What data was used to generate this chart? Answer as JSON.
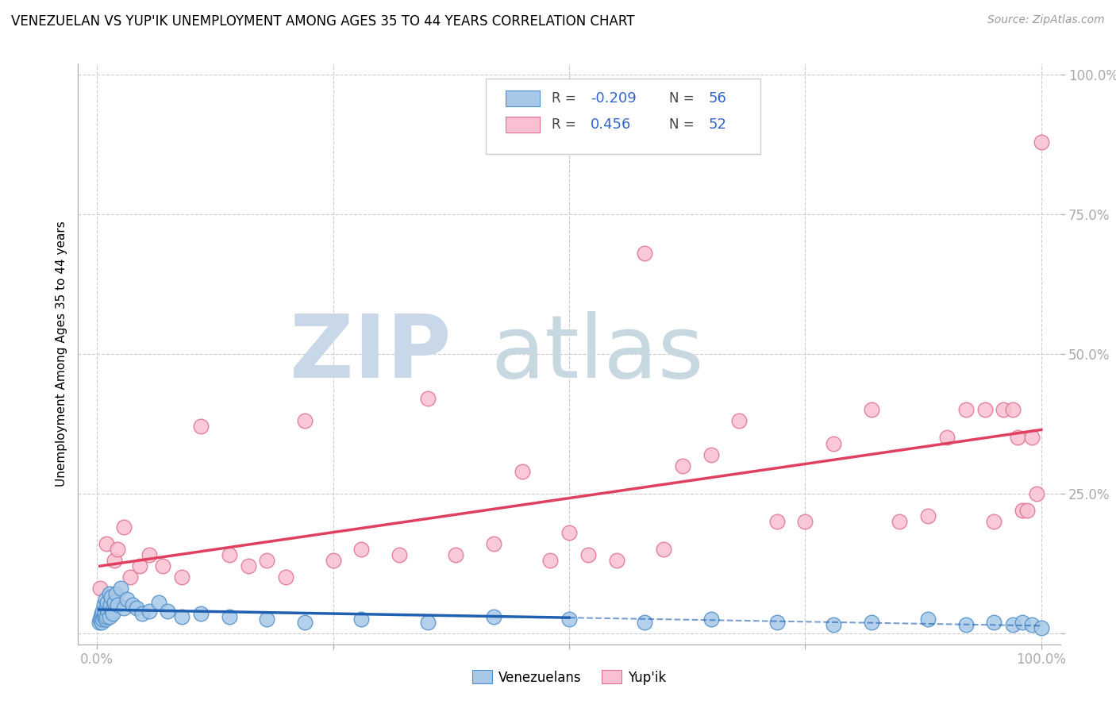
{
  "title": "VENEZUELAN VS YUP'IK UNEMPLOYMENT AMONG AGES 35 TO 44 YEARS CORRELATION CHART",
  "source": "Source: ZipAtlas.com",
  "ylabel": "Unemployment Among Ages 35 to 44 years",
  "xlim": [
    -0.02,
    1.02
  ],
  "ylim": [
    -0.02,
    1.02
  ],
  "xticks": [
    0.0,
    0.25,
    0.5,
    0.75,
    1.0
  ],
  "yticks": [
    0.0,
    0.25,
    0.5,
    0.75,
    1.0
  ],
  "xticklabels_bottom": [
    "0.0%",
    "",
    "",
    "",
    "100.0%"
  ],
  "yticklabels_right": [
    "",
    "25.0%",
    "50.0%",
    "75.0%",
    "100.0%"
  ],
  "venezuelan_R": -0.209,
  "venezuelan_N": 56,
  "yupik_R": 0.456,
  "yupik_N": 52,
  "venezuelan_color": "#a8c8e8",
  "venezuelan_edge_color": "#5090c8",
  "yupik_color": "#f8c0d0",
  "yupik_edge_color": "#e07090",
  "venezuelan_line_color": "#2060b0",
  "yupik_line_color": "#e04060",
  "watermark_zip_color": "#c8d8e8",
  "watermark_atlas_color": "#c8d8e0",
  "background_color": "#ffffff",
  "grid_color": "#cccccc",
  "venezuelan_x": [
    0.002,
    0.003,
    0.004,
    0.005,
    0.005,
    0.006,
    0.006,
    0.007,
    0.007,
    0.008,
    0.008,
    0.009,
    0.009,
    0.01,
    0.01,
    0.011,
    0.012,
    0.013,
    0.013,
    0.014,
    0.015,
    0.016,
    0.017,
    0.018,
    0.02,
    0.022,
    0.025,
    0.028,
    0.032,
    0.038,
    0.042,
    0.048,
    0.055,
    0.065,
    0.075,
    0.09,
    0.11,
    0.14,
    0.18,
    0.22,
    0.28,
    0.35,
    0.42,
    0.5,
    0.58,
    0.65,
    0.72,
    0.78,
    0.82,
    0.88,
    0.92,
    0.95,
    0.97,
    0.98,
    0.99,
    1.0
  ],
  "venezuelan_y": [
    0.02,
    0.025,
    0.03,
    0.035,
    0.02,
    0.04,
    0.025,
    0.05,
    0.03,
    0.04,
    0.035,
    0.06,
    0.025,
    0.045,
    0.03,
    0.055,
    0.04,
    0.07,
    0.03,
    0.05,
    0.065,
    0.04,
    0.035,
    0.055,
    0.07,
    0.05,
    0.08,
    0.045,
    0.06,
    0.05,
    0.045,
    0.035,
    0.04,
    0.055,
    0.04,
    0.03,
    0.035,
    0.03,
    0.025,
    0.02,
    0.025,
    0.02,
    0.03,
    0.025,
    0.02,
    0.025,
    0.02,
    0.015,
    0.02,
    0.025,
    0.015,
    0.02,
    0.015,
    0.02,
    0.015,
    0.01
  ],
  "yupik_x": [
    0.003,
    0.008,
    0.01,
    0.015,
    0.018,
    0.022,
    0.028,
    0.035,
    0.045,
    0.055,
    0.07,
    0.09,
    0.11,
    0.14,
    0.16,
    0.18,
    0.2,
    0.22,
    0.25,
    0.28,
    0.32,
    0.35,
    0.38,
    0.42,
    0.45,
    0.48,
    0.5,
    0.52,
    0.55,
    0.58,
    0.6,
    0.62,
    0.65,
    0.68,
    0.72,
    0.75,
    0.78,
    0.82,
    0.85,
    0.88,
    0.9,
    0.92,
    0.94,
    0.95,
    0.96,
    0.97,
    0.975,
    0.98,
    0.985,
    0.99,
    0.995,
    1.0
  ],
  "yupik_y": [
    0.08,
    0.03,
    0.16,
    0.06,
    0.13,
    0.15,
    0.19,
    0.1,
    0.12,
    0.14,
    0.12,
    0.1,
    0.37,
    0.14,
    0.12,
    0.13,
    0.1,
    0.38,
    0.13,
    0.15,
    0.14,
    0.42,
    0.14,
    0.16,
    0.29,
    0.13,
    0.18,
    0.14,
    0.13,
    0.68,
    0.15,
    0.3,
    0.32,
    0.38,
    0.2,
    0.2,
    0.34,
    0.4,
    0.2,
    0.21,
    0.35,
    0.4,
    0.4,
    0.2,
    0.4,
    0.4,
    0.35,
    0.22,
    0.22,
    0.35,
    0.25,
    0.88
  ]
}
